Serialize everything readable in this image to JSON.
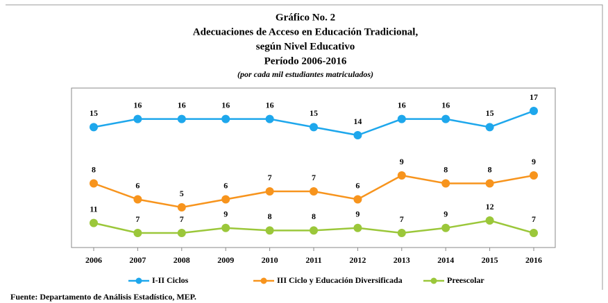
{
  "chart_data": {
    "type": "line",
    "title": [
      "Gráfico No. 2",
      "Adecuaciones de Acceso en Educación Tradicional,",
      "según Nivel Educativo",
      "Período 2006-2016"
    ],
    "subtitle": "(por cada mil estudiantes matriculados)",
    "categories": [
      "2006",
      "2007",
      "2008",
      "2009",
      "2010",
      "2011",
      "2012",
      "2013",
      "2014",
      "2015",
      "2016"
    ],
    "series": [
      {
        "name": "I-II Ciclos",
        "color": "#1ea7ec",
        "values": [
          15,
          16,
          16,
          16,
          16,
          15,
          14,
          16,
          16,
          15,
          17
        ]
      },
      {
        "name": "III Ciclo y Educación Diversificada",
        "color": "#f7941d",
        "values": [
          8,
          6,
          5,
          6,
          7,
          7,
          6,
          9,
          8,
          8,
          9
        ]
      },
      {
        "name": "Preescolar",
        "color": "#9bc73a",
        "values": [
          11,
          7,
          7,
          9,
          8,
          8,
          9,
          7,
          9,
          12,
          7
        ]
      }
    ],
    "legend": "bottom",
    "source": "Fuente:  Departamento de Análisis Estadístico, MEP."
  }
}
